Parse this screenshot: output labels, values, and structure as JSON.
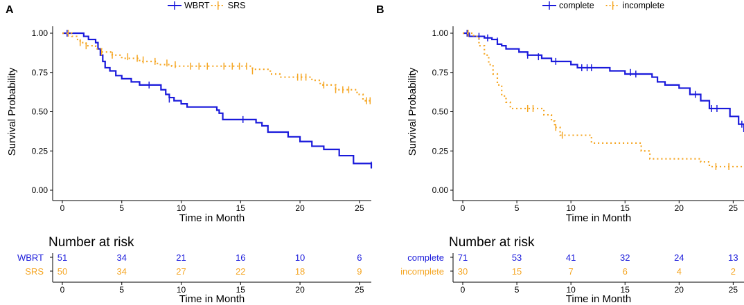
{
  "chart_data": [
    {
      "type": "line",
      "subtype": "kaplan-meier",
      "panel_label": "A",
      "xlabel": "Time in Month",
      "ylabel": "Survival Probability",
      "xlim": [
        0,
        26
      ],
      "ylim": [
        0,
        1
      ],
      "x_ticks": [
        "0",
        "5",
        "10",
        "15",
        "20",
        "25"
      ],
      "y_ticks": [
        "0.00",
        "0.25",
        "0.50",
        "0.75",
        "1.00"
      ],
      "legend": [
        "WBRT",
        "SRS"
      ],
      "series": [
        {
          "name": "WBRT",
          "color": "#1a1adb",
          "dash": "solid",
          "steps": [
            [
              0,
              1.0
            ],
            [
              1.8,
              0.98
            ],
            [
              2.2,
              0.96
            ],
            [
              2.8,
              0.94
            ],
            [
              3.0,
              0.9
            ],
            [
              3.2,
              0.86
            ],
            [
              3.4,
              0.82
            ],
            [
              3.6,
              0.78
            ],
            [
              4.0,
              0.76
            ],
            [
              4.5,
              0.73
            ],
            [
              5.0,
              0.71
            ],
            [
              5.8,
              0.69
            ],
            [
              6.5,
              0.67
            ],
            [
              7.9,
              0.67
            ],
            [
              8.3,
              0.64
            ],
            [
              8.7,
              0.61
            ],
            [
              9.0,
              0.59
            ],
            [
              9.4,
              0.57
            ],
            [
              10.0,
              0.55
            ],
            [
              10.5,
              0.53
            ],
            [
              13.0,
              0.51
            ],
            [
              13.2,
              0.49
            ],
            [
              13.5,
              0.45
            ],
            [
              16.3,
              0.43
            ],
            [
              16.8,
              0.41
            ],
            [
              17.3,
              0.37
            ],
            [
              19.0,
              0.34
            ],
            [
              20.0,
              0.31
            ],
            [
              21.0,
              0.28
            ],
            [
              22.0,
              0.26
            ],
            [
              23.3,
              0.22
            ],
            [
              24.5,
              0.17
            ],
            [
              26.0,
              0.14
            ]
          ],
          "censors": [
            [
              0.4,
              1.0
            ],
            [
              7.3,
              0.67
            ],
            [
              9.0,
              0.58
            ],
            [
              15.2,
              0.45
            ],
            [
              26.0,
              0.16
            ]
          ]
        },
        {
          "name": "SRS",
          "color": "#f5a623",
          "dash": "dotted",
          "steps": [
            [
              0,
              1.0
            ],
            [
              0.8,
              0.98
            ],
            [
              1.2,
              0.96
            ],
            [
              1.5,
              0.94
            ],
            [
              2.0,
              0.92
            ],
            [
              2.8,
              0.9
            ],
            [
              3.3,
              0.88
            ],
            [
              4.2,
              0.86
            ],
            [
              5.0,
              0.84
            ],
            [
              6.5,
              0.82
            ],
            [
              8.0,
              0.8
            ],
            [
              9.2,
              0.79
            ],
            [
              16.0,
              0.77
            ],
            [
              17.5,
              0.74
            ],
            [
              18.3,
              0.72
            ],
            [
              21.0,
              0.7
            ],
            [
              21.7,
              0.67
            ],
            [
              23.0,
              0.64
            ],
            [
              24.8,
              0.61
            ],
            [
              25.3,
              0.57
            ],
            [
              26.0,
              0.57
            ]
          ],
          "censors": [
            [
              0.5,
              1.0
            ],
            [
              1.5,
              0.94
            ],
            [
              2.0,
              0.92
            ],
            [
              3.3,
              0.88
            ],
            [
              4.2,
              0.86
            ],
            [
              5.5,
              0.85
            ],
            [
              6.3,
              0.84
            ],
            [
              6.8,
              0.83
            ],
            [
              7.8,
              0.82
            ],
            [
              8.8,
              0.81
            ],
            [
              9.5,
              0.8
            ],
            [
              10.8,
              0.79
            ],
            [
              11.5,
              0.79
            ],
            [
              12.2,
              0.79
            ],
            [
              13.6,
              0.79
            ],
            [
              14.3,
              0.79
            ],
            [
              14.9,
              0.79
            ],
            [
              15.5,
              0.79
            ],
            [
              16.0,
              0.76
            ],
            [
              19.8,
              0.72
            ],
            [
              20.1,
              0.72
            ],
            [
              20.5,
              0.72
            ],
            [
              22.0,
              0.67
            ],
            [
              23.0,
              0.64
            ],
            [
              23.6,
              0.64
            ],
            [
              24.1,
              0.64
            ],
            [
              25.6,
              0.57
            ],
            [
              25.9,
              0.57
            ]
          ]
        }
      ],
      "risk_table": {
        "title": "Number at risk",
        "xlabel": "Time in Month",
        "times": [
          "0",
          "5",
          "10",
          "15",
          "20",
          "25"
        ],
        "rows": [
          {
            "label": "WBRT",
            "color": "#1a1adb",
            "values": [
              "51",
              "34",
              "21",
              "16",
              "10",
              "6"
            ]
          },
          {
            "label": "SRS",
            "color": "#f5a623",
            "values": [
              "50",
              "34",
              "27",
              "22",
              "18",
              "9"
            ]
          }
        ]
      }
    },
    {
      "type": "line",
      "subtype": "kaplan-meier",
      "panel_label": "B",
      "xlabel": "Time in Month",
      "ylabel": "Survival Probability",
      "xlim": [
        0,
        26
      ],
      "ylim": [
        0,
        1
      ],
      "x_ticks": [
        "0",
        "5",
        "10",
        "15",
        "20",
        "25"
      ],
      "y_ticks": [
        "0.00",
        "0.25",
        "0.50",
        "0.75",
        "1.00"
      ],
      "legend": [
        "complete",
        "incomplete"
      ],
      "series": [
        {
          "name": "complete",
          "color": "#1a1adb",
          "dash": "solid",
          "steps": [
            [
              0,
              1.0
            ],
            [
              0.6,
              0.98
            ],
            [
              2.0,
              0.97
            ],
            [
              2.7,
              0.96
            ],
            [
              3.2,
              0.93
            ],
            [
              3.6,
              0.92
            ],
            [
              4.0,
              0.9
            ],
            [
              5.2,
              0.88
            ],
            [
              6.0,
              0.86
            ],
            [
              7.3,
              0.84
            ],
            [
              8.2,
              0.82
            ],
            [
              10.0,
              0.8
            ],
            [
              10.6,
              0.78
            ],
            [
              13.6,
              0.76
            ],
            [
              15.0,
              0.74
            ],
            [
              17.5,
              0.72
            ],
            [
              18.0,
              0.69
            ],
            [
              18.7,
              0.67
            ],
            [
              20.0,
              0.65
            ],
            [
              21.0,
              0.61
            ],
            [
              22.0,
              0.57
            ],
            [
              22.8,
              0.52
            ],
            [
              24.7,
              0.47
            ],
            [
              25.5,
              0.42
            ],
            [
              26.0,
              0.37
            ]
          ],
          "censors": [
            [
              0.4,
              1.0
            ],
            [
              1.5,
              0.98
            ],
            [
              2.3,
              0.97
            ],
            [
              3.2,
              0.95
            ],
            [
              6.0,
              0.86
            ],
            [
              7.0,
              0.85
            ],
            [
              8.6,
              0.82
            ],
            [
              11.0,
              0.78
            ],
            [
              11.5,
              0.78
            ],
            [
              11.9,
              0.78
            ],
            [
              15.5,
              0.75
            ],
            [
              16.0,
              0.74
            ],
            [
              21.5,
              0.61
            ],
            [
              23.0,
              0.52
            ],
            [
              23.5,
              0.52
            ],
            [
              25.8,
              0.42
            ]
          ]
        },
        {
          "name": "incomplete",
          "color": "#f5a623",
          "dash": "dotted",
          "steps": [
            [
              0,
              1.0
            ],
            [
              1.0,
              0.98
            ],
            [
              1.5,
              0.92
            ],
            [
              2.0,
              0.86
            ],
            [
              2.4,
              0.8
            ],
            [
              2.8,
              0.74
            ],
            [
              3.2,
              0.67
            ],
            [
              3.6,
              0.6
            ],
            [
              4.0,
              0.56
            ],
            [
              4.4,
              0.52
            ],
            [
              7.5,
              0.48
            ],
            [
              8.2,
              0.44
            ],
            [
              8.5,
              0.4
            ],
            [
              9.0,
              0.35
            ],
            [
              11.9,
              0.3
            ],
            [
              16.5,
              0.25
            ],
            [
              17.3,
              0.2
            ],
            [
              22.0,
              0.18
            ],
            [
              22.8,
              0.15
            ],
            [
              26.0,
              0.15
            ]
          ],
          "censors": [
            [
              0.5,
              1.0
            ],
            [
              6.0,
              0.52
            ],
            [
              6.5,
              0.52
            ],
            [
              8.6,
              0.4
            ],
            [
              9.2,
              0.35
            ],
            [
              23.4,
              0.15
            ],
            [
              24.6,
              0.15
            ]
          ]
        }
      ],
      "risk_table": {
        "title": "Number at risk",
        "xlabel": "Time in Month",
        "times": [
          "0",
          "5",
          "10",
          "15",
          "20",
          "25"
        ],
        "rows": [
          {
            "label": "complete",
            "color": "#1a1adb",
            "values": [
              "71",
              "53",
              "41",
              "32",
              "24",
              "13"
            ]
          },
          {
            "label": "incomplete",
            "color": "#f5a623",
            "values": [
              "30",
              "15",
              "7",
              "6",
              "4",
              "2"
            ]
          }
        ]
      }
    }
  ]
}
